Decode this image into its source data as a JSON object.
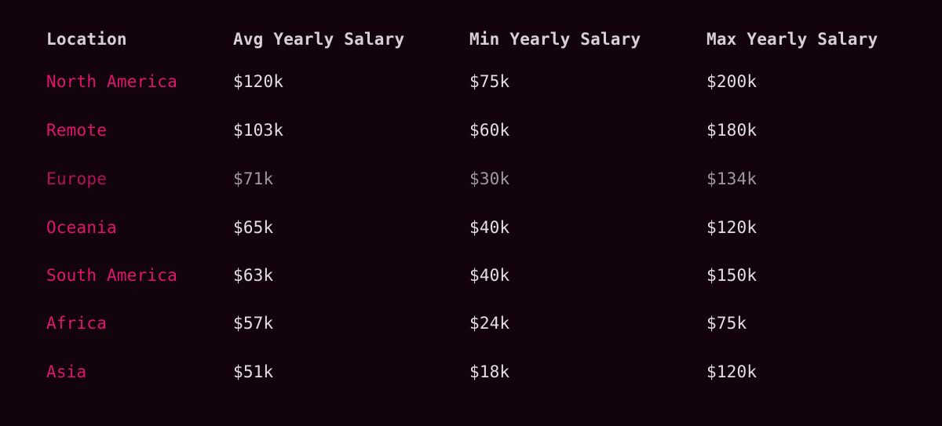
{
  "table": {
    "headers": [
      "Location",
      "Avg Yearly Salary",
      "Min Yearly Salary",
      "Max Yearly Salary"
    ],
    "rows": [
      {
        "location": "North America",
        "avg": "$120k",
        "min": "$75k",
        "max": "$200k"
      },
      {
        "location": "Remote",
        "avg": "$103k",
        "min": "$60k",
        "max": "$180k"
      },
      {
        "location": "Europe",
        "avg": "$71k",
        "min": "$30k",
        "max": "$134k"
      },
      {
        "location": "Oceania",
        "avg": "$65k",
        "min": "$40k",
        "max": "$120k"
      },
      {
        "location": "South America",
        "avg": "$63k",
        "min": "$40k",
        "max": "$150k"
      },
      {
        "location": "Africa",
        "avg": "$57k",
        "min": "$24k",
        "max": "$75k"
      },
      {
        "location": "Asia",
        "avg": "$51k",
        "min": "$18k",
        "max": "$120k"
      }
    ]
  },
  "colors": {
    "background": "#13030d",
    "header_text": "#d7d1d5",
    "location_text": "#e0156d",
    "value_text": "#e4dfe3",
    "dimmed_location_text": "#b21458",
    "dimmed_value_text": "#9f9a9d"
  }
}
